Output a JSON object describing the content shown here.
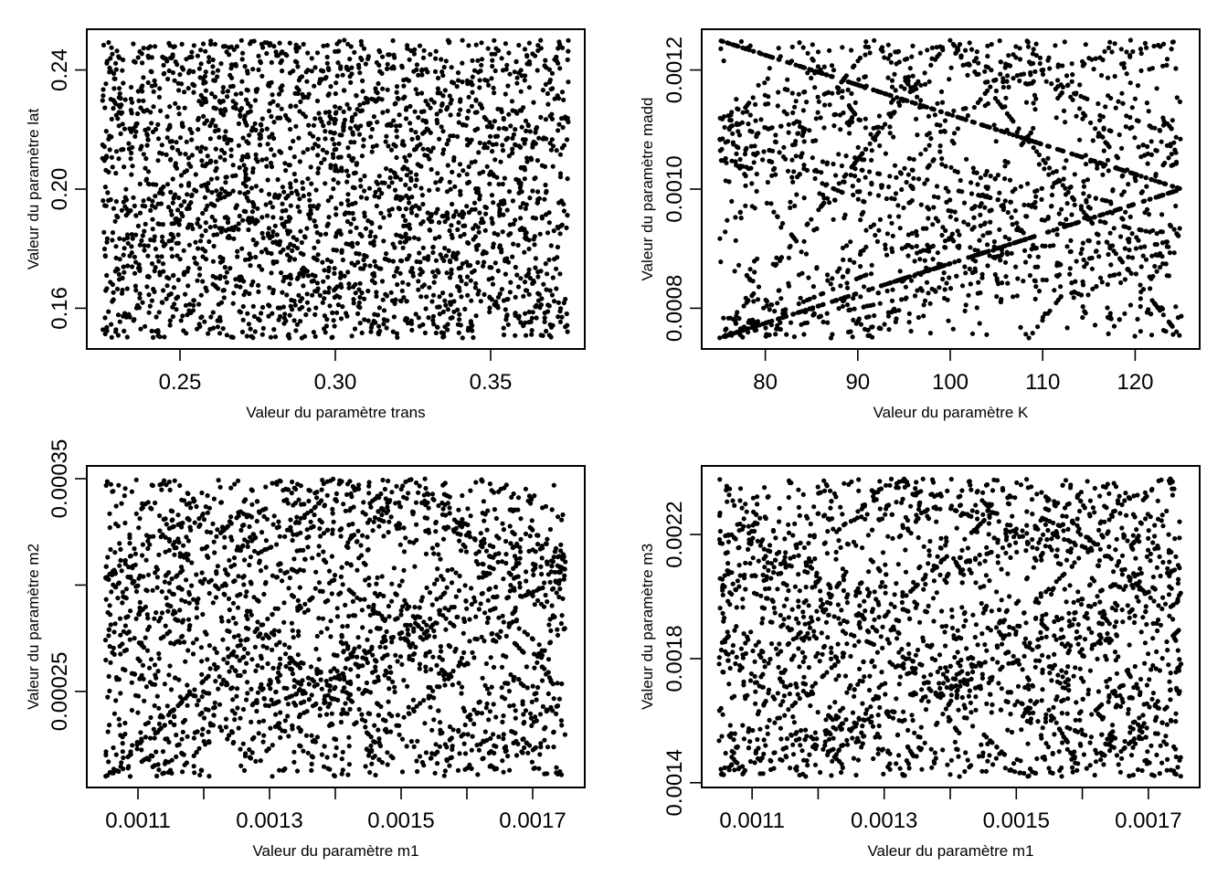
{
  "chart_data": [
    {
      "type": "scatter",
      "id": "trans-lat",
      "xlabel": "Valeur du paramètre trans",
      "ylabel": "Valeur du paramètre lat",
      "xlim": [
        0.225,
        0.375
      ],
      "ylim": [
        0.15,
        0.25
      ],
      "xticks": [
        {
          "v": 0.25,
          "label": "0.25"
        },
        {
          "v": 0.3,
          "label": "0.30"
        },
        {
          "v": 0.35,
          "label": "0.35"
        }
      ],
      "yticks": [
        {
          "v": 0.16,
          "label": "0.16"
        },
        {
          "v": 0.2,
          "label": "0.20"
        },
        {
          "v": 0.24,
          "label": "0.24"
        }
      ],
      "pattern": "uniform",
      "n_points": 2600,
      "grid": false
    },
    {
      "type": "scatter",
      "id": "K-madd",
      "xlabel": "Valeur du paramètre K",
      "ylabel": "Valeur du paramètre madd",
      "xlim": [
        75,
        125
      ],
      "ylim": [
        0.00075,
        0.00125
      ],
      "xticks": [
        {
          "v": 80,
          "label": "80"
        },
        {
          "v": 90,
          "label": "90"
        },
        {
          "v": 100,
          "label": "100"
        },
        {
          "v": 110,
          "label": "110"
        },
        {
          "v": 120,
          "label": "120"
        }
      ],
      "yticks": [
        {
          "v": 0.0008,
          "label": "0.0008"
        },
        {
          "v": 0.001,
          "label": "0.0010"
        },
        {
          "v": 0.0012,
          "label": "0.0012"
        }
      ],
      "pattern": "lattice",
      "frequencies": [
        [
          1,
          2
        ],
        [
          2,
          1
        ],
        [
          3,
          1
        ],
        [
          3,
          2
        ]
      ],
      "n_points": 2200,
      "grid": false
    },
    {
      "type": "scatter",
      "id": "m1-m2",
      "xlabel": "Valeur du paramètre m1",
      "ylabel": "Valeur du paramètre m2",
      "xlim": [
        0.00105,
        0.00175
      ],
      "ylim": [
        0.00021,
        0.00035
      ],
      "xticks": [
        {
          "v": 0.0011,
          "label": "0.0011"
        },
        {
          "v": 0.0012,
          "label": ""
        },
        {
          "v": 0.0013,
          "label": "0.0013"
        },
        {
          "v": 0.0014,
          "label": ""
        },
        {
          "v": 0.0015,
          "label": "0.0015"
        },
        {
          "v": 0.0016,
          "label": ""
        },
        {
          "v": 0.0017,
          "label": "0.0017"
        }
      ],
      "yticks": [
        {
          "v": 0.00025,
          "label": "0.00025"
        },
        {
          "v": 0.0003,
          "label": ""
        },
        {
          "v": 0.00035,
          "label": "0.00035"
        }
      ],
      "pattern": "lattice",
      "frequencies": [
        [
          3,
          2
        ],
        [
          2,
          3
        ],
        [
          3,
          4
        ],
        [
          4,
          3
        ]
      ],
      "n_points": 2400,
      "grid": false
    },
    {
      "type": "scatter",
      "id": "m1-m3",
      "xlabel": "Valeur du paramètre m1",
      "ylabel": "Valeur du paramètre m3",
      "xlim": [
        0.00105,
        0.00175
      ],
      "ylim": [
        0.00142,
        0.00238
      ],
      "xticks": [
        {
          "v": 0.0011,
          "label": "0.0011"
        },
        {
          "v": 0.0012,
          "label": ""
        },
        {
          "v": 0.0013,
          "label": "0.0013"
        },
        {
          "v": 0.0014,
          "label": ""
        },
        {
          "v": 0.0015,
          "label": "0.0015"
        },
        {
          "v": 0.0016,
          "label": ""
        },
        {
          "v": 0.0017,
          "label": "0.0017"
        }
      ],
      "yticks": [
        {
          "v": 0.0014,
          "label": "0.0014"
        },
        {
          "v": 0.0018,
          "label": "0.0018"
        },
        {
          "v": 0.0022,
          "label": "0.0022"
        }
      ],
      "pattern": "lattice",
      "frequencies": [
        [
          2,
          3
        ],
        [
          3,
          2
        ],
        [
          5,
          3
        ],
        [
          2,
          5
        ]
      ],
      "n_points": 2400,
      "grid": false
    }
  ]
}
